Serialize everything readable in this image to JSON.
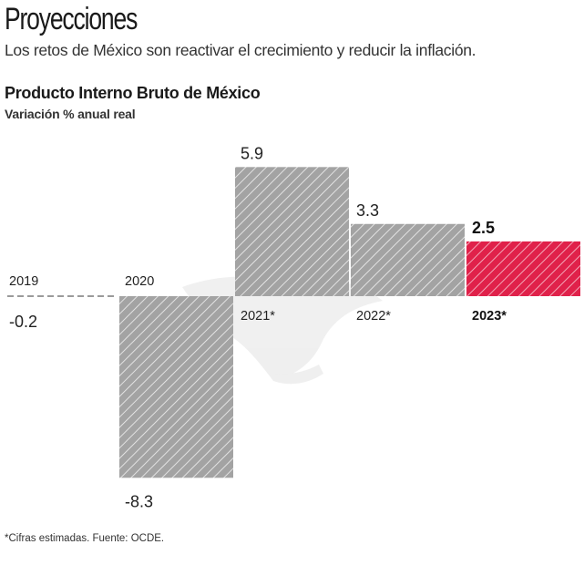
{
  "header": {
    "title": "Proyecciones",
    "subtitle": "Los retos de México son reactivar el crecimiento y reducir la inflación."
  },
  "footer": {
    "source": "*Cifras estimadas. Fuente: OCDE."
  },
  "colors": {
    "bar_default": "#a3a3a3",
    "bar_highlight": "#e0214a",
    "hatch": "#ffffff",
    "text": "#222222"
  },
  "chart_data": {
    "type": "bar",
    "title": "Producto Interno Bruto de México",
    "subtitle": "Variación % anual real",
    "xlabel": "",
    "ylabel": "Variación % anual real",
    "categories": [
      "2019",
      "2020",
      "2021*",
      "2022*",
      "2023*"
    ],
    "values": [
      -0.2,
      -8.3,
      5.9,
      3.3,
      2.5
    ],
    "value_labels": [
      "-0.2",
      "-8.3",
      "5.9",
      "3.3",
      "2.5"
    ],
    "highlight": [
      false,
      false,
      false,
      false,
      true
    ],
    "ylim": [
      -8.3,
      5.9
    ],
    "grid": false,
    "legend": "none",
    "style": "hatched bars; 2019 drawn as dashed line at baseline",
    "annotations": [
      "* Cifras estimadas"
    ]
  }
}
